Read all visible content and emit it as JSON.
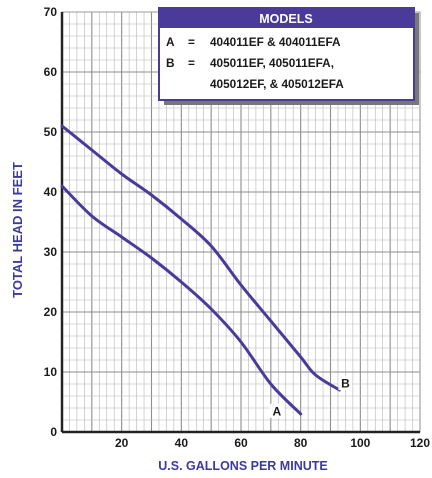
{
  "chart_data": {
    "type": "line",
    "xlabel": "U.S. GALLONS PER MINUTE",
    "ylabel": "TOTAL HEAD IN FEET",
    "xlim": [
      0,
      120
    ],
    "ylim": [
      0,
      70
    ],
    "x_ticks": [
      "20",
      "40",
      "60",
      "80",
      "100",
      "120"
    ],
    "y_ticks": [
      "0",
      "10",
      "20",
      "30",
      "40",
      "50",
      "60",
      "70"
    ],
    "grid": true,
    "series": [
      {
        "name": "A",
        "color": "#4a3a9a",
        "points": [
          [
            0,
            41
          ],
          [
            10,
            36
          ],
          [
            20,
            32.5
          ],
          [
            30,
            29
          ],
          [
            40,
            25
          ],
          [
            50,
            20.5
          ],
          [
            60,
            15
          ],
          [
            70,
            8
          ],
          [
            80,
            3
          ]
        ]
      },
      {
        "name": "B",
        "color": "#4a3a9a",
        "points": [
          [
            0,
            51
          ],
          [
            10,
            47
          ],
          [
            20,
            43
          ],
          [
            30,
            39.5
          ],
          [
            40,
            35.5
          ],
          [
            50,
            31
          ],
          [
            60,
            24.5
          ],
          [
            70,
            18.5
          ],
          [
            80,
            12.5
          ],
          [
            85,
            9.5
          ],
          [
            93,
            7
          ]
        ]
      }
    ],
    "legend": {
      "title": "MODELS",
      "rows": [
        [
          "A",
          "=",
          "404011EF & 404011EFA"
        ],
        [
          "B",
          "=",
          "405011EF, 405011EFA,"
        ],
        [
          "",
          "",
          "405012EF, & 405012EFA"
        ]
      ],
      "placement": "top-right"
    },
    "curve_labels": [
      "A",
      "B"
    ]
  },
  "colors": {
    "curve": "#4a3a9a",
    "header": "#4a3a9a",
    "label_text": "#3b3b9e",
    "grid": "#b5b5b5",
    "axis": "#222222"
  }
}
